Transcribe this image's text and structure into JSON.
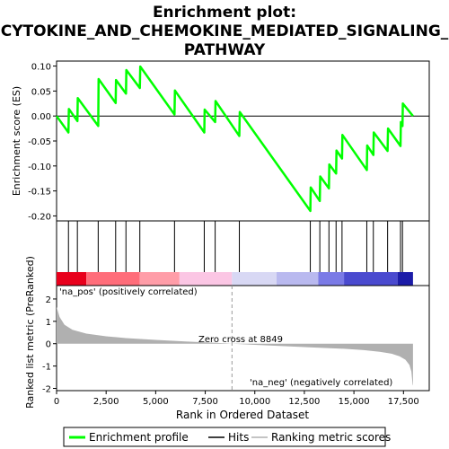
{
  "chart_data": {
    "type": "line",
    "title_lines": [
      "Enrichment plot:",
      "CYTOKINE_AND_CHEMOKINE_MEDIATED_SIGNALING_",
      "PATHWAY"
    ],
    "top_panel": {
      "ylabel": "Enrichment score (ES)",
      "ylim": [
        -0.21,
        0.11
      ],
      "yticks": [
        0.1,
        0.05,
        0.0,
        -0.05,
        -0.1,
        -0.15,
        -0.2
      ],
      "ytick_labels": [
        "0.10",
        "0.05",
        "0.00",
        "-0.05",
        "-0.10",
        "-0.15",
        "-0.20"
      ],
      "line_color": "#00ff00",
      "es_points": [
        [
          0,
          0.0
        ],
        [
          600,
          -0.033
        ],
        [
          620,
          0.014
        ],
        [
          1050,
          -0.01
        ],
        [
          1070,
          0.036
        ],
        [
          2100,
          -0.02
        ],
        [
          2120,
          0.074
        ],
        [
          2980,
          0.026
        ],
        [
          3000,
          0.072
        ],
        [
          3500,
          0.045
        ],
        [
          3520,
          0.092
        ],
        [
          4200,
          0.056
        ],
        [
          4220,
          0.099
        ],
        [
          5950,
          0.003
        ],
        [
          5970,
          0.051
        ],
        [
          7450,
          -0.033
        ],
        [
          7470,
          0.013
        ],
        [
          8000,
          -0.012
        ],
        [
          8020,
          0.03
        ],
        [
          9220,
          -0.04
        ],
        [
          9240,
          0.008
        ],
        [
          12800,
          -0.19
        ],
        [
          12820,
          -0.143
        ],
        [
          13280,
          -0.17
        ],
        [
          13300,
          -0.121
        ],
        [
          13740,
          -0.145
        ],
        [
          13760,
          -0.097
        ],
        [
          14100,
          -0.115
        ],
        [
          14120,
          -0.069
        ],
        [
          14400,
          -0.085
        ],
        [
          14420,
          -0.038
        ],
        [
          15650,
          -0.108
        ],
        [
          15670,
          -0.059
        ],
        [
          15980,
          -0.078
        ],
        [
          16000,
          -0.033
        ],
        [
          16700,
          -0.07
        ],
        [
          16720,
          -0.025
        ],
        [
          17350,
          -0.06
        ],
        [
          17370,
          -0.012
        ],
        [
          17450,
          -0.02
        ],
        [
          17470,
          0.025
        ],
        [
          17980,
          0.0
        ]
      ]
    },
    "hits": [
      600,
      1050,
      2100,
      2980,
      3500,
      4200,
      5950,
      7450,
      8000,
      9220,
      12800,
      13280,
      13740,
      14100,
      14400,
      15650,
      15980,
      16700,
      17350,
      17450
    ],
    "middle_panel": {
      "pos_label": "'na_pos' (positively correlated)",
      "neg_label": "'na_neg' (negatively correlated)",
      "pos_label_color": "#cc0000",
      "neg_label_color": "#0000cc",
      "color_blocks": [
        {
          "start": 0,
          "end": 1500,
          "color": "#e8001c"
        },
        {
          "start": 1500,
          "end": 4200,
          "color": "#ff6d7a"
        },
        {
          "start": 4200,
          "end": 6200,
          "color": "#ff9da8"
        },
        {
          "start": 6200,
          "end": 8849,
          "color": "#fbc6e4"
        },
        {
          "start": 8849,
          "end": 11100,
          "color": "#d8d8f4"
        },
        {
          "start": 11100,
          "end": 13200,
          "color": "#b9b9ef"
        },
        {
          "start": 13200,
          "end": 14500,
          "color": "#7a7ae6"
        },
        {
          "start": 14500,
          "end": 17200,
          "color": "#4a4acf"
        },
        {
          "start": 17200,
          "end": 17980,
          "color": "#1c1ca8"
        }
      ]
    },
    "bottom_panel": {
      "ylabel": "Ranked list metric (PreRanked)",
      "xlabel": "Rank in Ordered Dataset",
      "ylim": [
        -2.1,
        2.6
      ],
      "yticks": [
        2,
        1,
        0,
        -1,
        -2
      ],
      "ytick_labels": [
        "2",
        "1",
        "0",
        "-1",
        "-2"
      ],
      "xlim": [
        0,
        18800
      ],
      "xticks": [
        0,
        2500,
        5000,
        7500,
        10000,
        12500,
        15000,
        17500
      ],
      "xtick_labels": [
        "0",
        "2,500",
        "5,000",
        "7,500",
        "10,000",
        "12,500",
        "15,000",
        "17,500"
      ],
      "zero_cross_label": "Zero cross at 8849",
      "zero_cross": 8849,
      "metric_points": [
        [
          0,
          1.65
        ],
        [
          150,
          1.2
        ],
        [
          400,
          0.85
        ],
        [
          800,
          0.62
        ],
        [
          1500,
          0.45
        ],
        [
          2500,
          0.33
        ],
        [
          3500,
          0.25
        ],
        [
          5000,
          0.17
        ],
        [
          6500,
          0.1
        ],
        [
          8000,
          0.04
        ],
        [
          8849,
          0.0
        ],
        [
          10000,
          -0.05
        ],
        [
          11500,
          -0.11
        ],
        [
          13000,
          -0.17
        ],
        [
          14500,
          -0.23
        ],
        [
          15500,
          -0.29
        ],
        [
          16300,
          -0.36
        ],
        [
          16900,
          -0.45
        ],
        [
          17300,
          -0.56
        ],
        [
          17600,
          -0.72
        ],
        [
          17800,
          -0.95
        ],
        [
          17900,
          -1.25
        ],
        [
          17960,
          -1.85
        ],
        [
          17980,
          -1.85
        ]
      ],
      "fill_color": "#b0b0b0"
    },
    "legend": [
      {
        "label": "Enrichment profile",
        "color": "#00ff00",
        "kind": "thick-line"
      },
      {
        "label": "Hits",
        "color": "#000000",
        "kind": "line"
      },
      {
        "label": "Ranking metric scores",
        "color": "#b0b0b0",
        "kind": "line"
      }
    ]
  }
}
